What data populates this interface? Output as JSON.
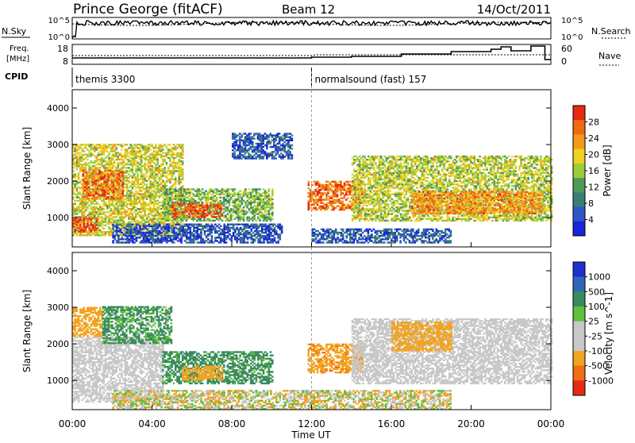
{
  "header": {
    "station": "Prince George (fitACF)",
    "beam": "Beam 12",
    "date": "14/Oct/2011"
  },
  "labels": {
    "nsky": "N.Sky",
    "nsearch": "N.Search",
    "freq_line1": "Freq.",
    "freq_line2": "[MHz]",
    "nave": "Nave",
    "cpid": "CPID",
    "noise_low": "10^0",
    "noise_high": "10^5",
    "freq_low": "8",
    "freq_high": "18",
    "nave_low": "0",
    "nave_high": "60"
  },
  "cpid_segments": [
    {
      "start_hour": 0,
      "label": "themis 3300"
    },
    {
      "start_hour": 12,
      "label": "normalsound (fast) 157"
    }
  ],
  "colors": {
    "power_scale": [
      "#1b24d6",
      "#2e56c4",
      "#3a7d73",
      "#4f9a5b",
      "#9ccc3a",
      "#f0d020",
      "#f39a1a",
      "#f06a14",
      "#e62a10"
    ],
    "velocity_scale": [
      "#1f2fd0",
      "#2f66b8",
      "#3a8a60",
      "#5fc03a",
      "#c8c8c8",
      "#c8c8c8",
      "#f2a321",
      "#f06d16",
      "#e52b12"
    ]
  },
  "chart_data": [
    {
      "type": "heatmap",
      "panel": "power",
      "xlabel": "Time UT",
      "ylabel": "Slant Range [km]",
      "x_ticks": [
        "00:00",
        "04:00",
        "08:00",
        "12:00",
        "16:00",
        "20:00",
        "00:00"
      ],
      "x_range_hours": [
        0,
        24
      ],
      "y_range_km": [
        200,
        4500
      ],
      "y_ticks": [
        1000,
        2000,
        3000,
        4000
      ],
      "colorbar": {
        "label": "Power [dB]",
        "ticks": [
          "4",
          "8",
          "12",
          "16",
          "20",
          "24",
          "28"
        ],
        "range": [
          0,
          32
        ]
      },
      "echo_regions": [
        {
          "t0": 0.0,
          "t1": 5.5,
          "r0": 500,
          "r1": 3000,
          "value": 18
        },
        {
          "t0": 0.5,
          "t1": 2.5,
          "r0": 1500,
          "r1": 2300,
          "value": 26
        },
        {
          "t0": 0.0,
          "t1": 1.2,
          "r0": 600,
          "r1": 1000,
          "value": 28
        },
        {
          "t0": 4.5,
          "t1": 10.0,
          "r0": 900,
          "r1": 1800,
          "value": 14
        },
        {
          "t0": 5.0,
          "t1": 7.5,
          "r0": 1000,
          "r1": 1400,
          "value": 28
        },
        {
          "t0": 2.0,
          "t1": 10.5,
          "r0": 300,
          "r1": 800,
          "value": 5
        },
        {
          "t0": 8.0,
          "t1": 11.0,
          "r0": 2600,
          "r1": 3300,
          "value": 6
        },
        {
          "t0": 11.8,
          "t1": 14.5,
          "r0": 1200,
          "r1": 2000,
          "value": 26
        },
        {
          "t0": 14.0,
          "t1": 24.0,
          "r0": 900,
          "r1": 2700,
          "value": 17
        },
        {
          "t0": 17.0,
          "t1": 23.5,
          "r0": 1100,
          "r1": 1700,
          "value": 24
        },
        {
          "t0": 12.0,
          "t1": 19.0,
          "r0": 300,
          "r1": 700,
          "value": 6
        }
      ]
    },
    {
      "type": "heatmap",
      "panel": "velocity",
      "xlabel": "Time UT",
      "ylabel": "Slant Range [km]",
      "x_ticks": [
        "00:00",
        "04:00",
        "08:00",
        "12:00",
        "16:00",
        "20:00",
        "00:00"
      ],
      "x_range_hours": [
        0,
        24
      ],
      "y_range_km": [
        200,
        4500
      ],
      "y_ticks": [
        1000,
        2000,
        3000,
        4000
      ],
      "colorbar": {
        "label": "Velocity [m s^-1]",
        "ticks": [
          "1000",
          "500",
          "100",
          "25",
          "-25",
          "-100",
          "-500",
          "-1000"
        ]
      },
      "echo_regions": [
        {
          "t0": 0.0,
          "t1": 4.5,
          "r0": 400,
          "r1": 2200,
          "value": 0
        },
        {
          "t0": 0.0,
          "t1": 1.5,
          "r0": 2200,
          "r1": 3000,
          "value": -300
        },
        {
          "t0": 1.5,
          "t1": 5.0,
          "r0": 2000,
          "r1": 3000,
          "value": 150
        },
        {
          "t0": 4.5,
          "t1": 10.0,
          "r0": 900,
          "r1": 1800,
          "value": 200
        },
        {
          "t0": 5.5,
          "t1": 7.5,
          "r0": 1000,
          "r1": 1400,
          "value": -300
        },
        {
          "t0": 11.8,
          "t1": 14.5,
          "r0": 1200,
          "r1": 2000,
          "value": -400
        },
        {
          "t0": 14.0,
          "t1": 24.0,
          "r0": 900,
          "r1": 2700,
          "value": 0
        },
        {
          "t0": 16.0,
          "t1": 19.0,
          "r0": 1800,
          "r1": 2600,
          "value": -250
        },
        {
          "t0": 2.0,
          "t1": 19.0,
          "r0": 200,
          "r1": 700,
          "value": -50
        }
      ]
    }
  ]
}
